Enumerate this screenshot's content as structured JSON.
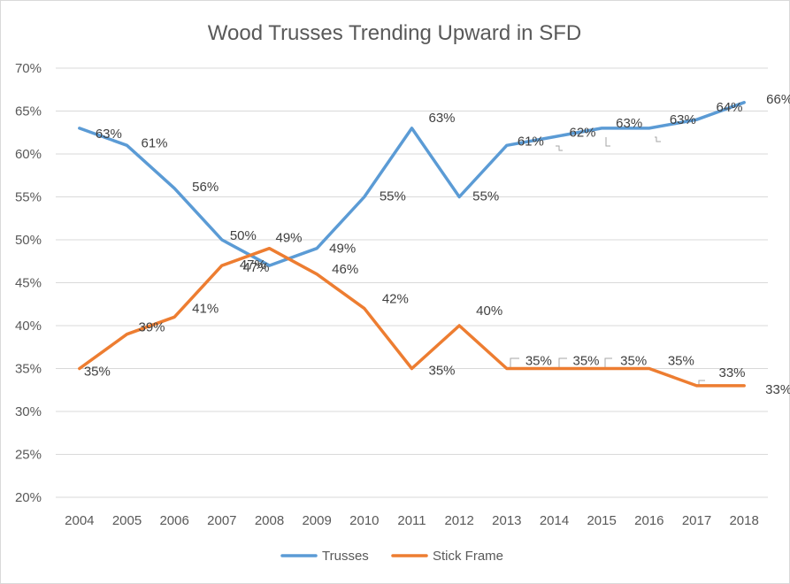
{
  "chart_data": {
    "type": "line",
    "title": "Wood Trusses Trending Upward in SFD",
    "xlabel": "",
    "ylabel": "",
    "categories": [
      "2004",
      "2005",
      "2006",
      "2007",
      "2008",
      "2009",
      "2010",
      "2011",
      "2012",
      "2013",
      "2014",
      "2015",
      "2016",
      "2017",
      "2018"
    ],
    "y_ticks": [
      "20%",
      "25%",
      "30%",
      "35%",
      "40%",
      "45%",
      "50%",
      "55%",
      "60%",
      "65%",
      "70%"
    ],
    "ylim": [
      20,
      70
    ],
    "grid": "horizontal",
    "legend_position": "bottom",
    "series": [
      {
        "name": "Trusses",
        "color": "#5b9bd5",
        "values": [
          63,
          61,
          56,
          50,
          47,
          49,
          55,
          63,
          55,
          61,
          62,
          63,
          63,
          64,
          66
        ],
        "labels": [
          "63%",
          "61%",
          "56%",
          "50%",
          "47%",
          "49%",
          "55%",
          "63%",
          "55%",
          "61%",
          "62%",
          "63%",
          "63%",
          "64%",
          "66%"
        ]
      },
      {
        "name": "Stick Frame",
        "color": "#ed7d31",
        "values": [
          35,
          39,
          41,
          47,
          49,
          46,
          42,
          35,
          40,
          35,
          35,
          35,
          35,
          33,
          33
        ],
        "labels": [
          "35%",
          "39%",
          "41%",
          "47%",
          "49%",
          "46%",
          "42%",
          "35%",
          "40%",
          "35%",
          "35%",
          "35%",
          "35%",
          "33%",
          "33%"
        ]
      }
    ]
  }
}
